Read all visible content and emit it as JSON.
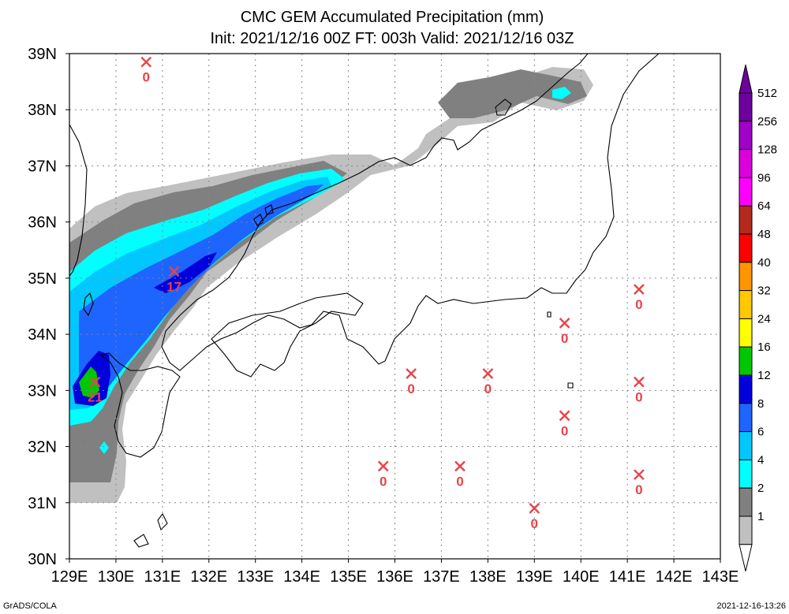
{
  "chart_data": {
    "type": "map",
    "title": "CMC GEM Accumulated Precipitation (mm)",
    "subtitle": "Init: 2021/12/16 00Z  FT: 003h  Valid: 2021/12/16 03Z",
    "lon_range": [
      129,
      143
    ],
    "lat_range": [
      30,
      39
    ],
    "lon_ticks": [
      "129E",
      "130E",
      "131E",
      "132E",
      "133E",
      "134E",
      "135E",
      "136E",
      "137E",
      "138E",
      "139E",
      "140E",
      "141E",
      "142E",
      "143E"
    ],
    "lat_ticks": [
      "30N",
      "31N",
      "32N",
      "33N",
      "34N",
      "35N",
      "36N",
      "37N",
      "38N",
      "39N"
    ],
    "grid": true,
    "legend": {
      "position": "right",
      "levels": [
        "1",
        "2",
        "4",
        "6",
        "8",
        "12",
        "16",
        "24",
        "32",
        "40",
        "48",
        "64",
        "96",
        "128",
        "256",
        "512"
      ],
      "colors": [
        "#c0c0c0",
        "#808080",
        "#00ffff",
        "#00c8ff",
        "#1e64ff",
        "#0000dc",
        "#00c800",
        "#ffff00",
        "#ffc800",
        "#ff9600",
        "#ff0000",
        "#b4281e",
        "#ff00ff",
        "#dc00dc",
        "#a000c8",
        "#6e00a0"
      ],
      "bottom_color": "#ffffff",
      "top_color": "#6e00a0"
    },
    "stations": [
      {
        "lon": 130.65,
        "lat": 38.85,
        "value": "0"
      },
      {
        "lon": 131.25,
        "lat": 35.12,
        "value": "17"
      },
      {
        "lon": 129.55,
        "lat": 33.15,
        "value": "21"
      },
      {
        "lon": 136.35,
        "lat": 33.3,
        "value": "0"
      },
      {
        "lon": 138.0,
        "lat": 33.3,
        "value": "0"
      },
      {
        "lon": 139.65,
        "lat": 34.2,
        "value": "0"
      },
      {
        "lon": 141.25,
        "lat": 34.8,
        "value": "0"
      },
      {
        "lon": 141.25,
        "lat": 33.15,
        "value": "0"
      },
      {
        "lon": 139.65,
        "lat": 32.55,
        "value": "0"
      },
      {
        "lon": 135.75,
        "lat": 31.65,
        "value": "0"
      },
      {
        "lon": 137.4,
        "lat": 31.65,
        "value": "0"
      },
      {
        "lon": 139.0,
        "lat": 30.9,
        "value": "0"
      },
      {
        "lon": 141.25,
        "lat": 31.5,
        "value": "0"
      }
    ]
  },
  "footer": {
    "left": "GrADS/COLA",
    "right": "2021-12-16-13:26"
  },
  "colors": {
    "station_marker": "#e8434a"
  }
}
